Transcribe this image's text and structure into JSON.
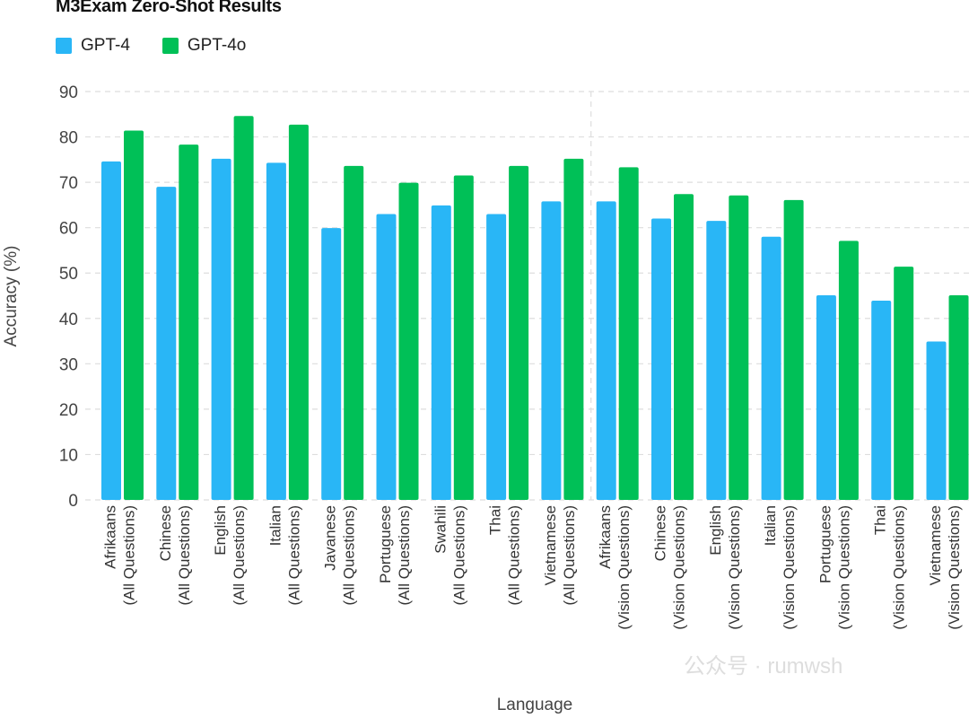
{
  "chart_data": {
    "type": "bar",
    "title": "M3Exam Zero-Shot Results",
    "xlabel": "Language",
    "ylabel": "Accuracy (%)",
    "ylim": [
      0,
      90
    ],
    "yticks": [
      0,
      10,
      20,
      30,
      40,
      50,
      60,
      70,
      80,
      90
    ],
    "grid": true,
    "legend_position": "top-left",
    "categories": [
      [
        "Afrikaans",
        "(All Questions)"
      ],
      [
        "Chinese",
        "(All Questions)"
      ],
      [
        "English",
        "(All Questions)"
      ],
      [
        "Italian",
        "(All Questions)"
      ],
      [
        "Javanese",
        "(All Questions)"
      ],
      [
        "Portuguese",
        "(All Questions)"
      ],
      [
        "Swahili",
        "(All Questions)"
      ],
      [
        "Thai",
        "(All Questions)"
      ],
      [
        "Vietnamese",
        "(All Questions)"
      ],
      [
        "Afrikaans",
        "(Vision Questions)"
      ],
      [
        "Chinese",
        "(Vision Questions)"
      ],
      [
        "English",
        "(Vision Questions)"
      ],
      [
        "Italian",
        "(Vision Questions)"
      ],
      [
        "Portuguese",
        "(Vision Questions)"
      ],
      [
        "Thai",
        "(Vision Questions)"
      ],
      [
        "Vietnamese",
        "(Vision Questions)"
      ]
    ],
    "series": [
      {
        "name": "GPT-4",
        "color": "#29B6F6",
        "values": [
          74.6,
          69.0,
          75.2,
          74.3,
          59.9,
          63.0,
          64.9,
          63.0,
          65.8,
          65.8,
          62.0,
          61.5,
          58.0,
          45.1,
          43.9,
          34.9
        ]
      },
      {
        "name": "GPT-4o",
        "color": "#00C057",
        "values": [
          81.4,
          78.3,
          84.6,
          82.7,
          73.6,
          69.9,
          71.5,
          73.6,
          75.2,
          73.3,
          67.4,
          67.1,
          66.1,
          57.1,
          51.4,
          45.1
        ]
      }
    ],
    "divider_after_category_index": 8
  },
  "watermark": "公众号 · rumwsh"
}
